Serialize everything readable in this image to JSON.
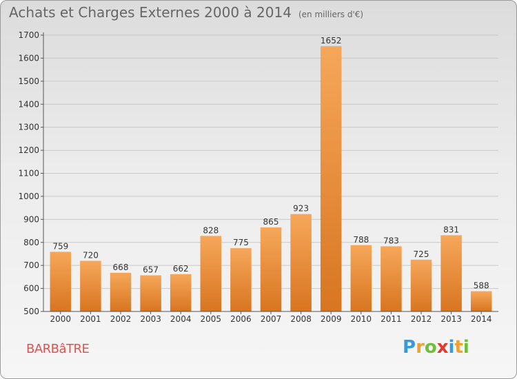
{
  "title": "Achats et Charges Externes 2000 à 2014",
  "subtitle": "(en milliers d'€)",
  "commune": "BARBâTRE",
  "logo": {
    "letters": [
      "P",
      "r",
      "o",
      "x",
      "i",
      "t",
      "i"
    ],
    "colors": [
      "#3a9ad9",
      "#f0a030",
      "#6fbf3a",
      "#e23a2a",
      "#3a9ad9",
      "#f0a030",
      "#6fbf3a"
    ]
  },
  "colors": {
    "bar_top": "#f6a75a",
    "bar_bottom": "#d87520",
    "grid": "#c8c8c8",
    "axis": "#555555",
    "label": "#333333",
    "commune": "#e0524e"
  },
  "chart_data": {
    "type": "bar",
    "categories": [
      "2000",
      "2001",
      "2002",
      "2003",
      "2004",
      "2005",
      "2006",
      "2007",
      "2008",
      "2009",
      "2010",
      "2011",
      "2012",
      "2013",
      "2014"
    ],
    "values": [
      759,
      720,
      668,
      657,
      662,
      828,
      775,
      865,
      923,
      1652,
      788,
      783,
      725,
      831,
      588
    ],
    "data_labels": [
      "759",
      "720",
      "668",
      "657",
      "662",
      "828",
      "775",
      "865",
      "923",
      "1652",
      "788",
      "783",
      "725",
      "831",
      "588"
    ],
    "y_ticks": [
      500,
      600,
      700,
      800,
      900,
      1000,
      1100,
      1200,
      1300,
      1400,
      1500,
      1600,
      1700
    ],
    "ylim": [
      500,
      1700
    ],
    "grid": true,
    "legend": "none"
  }
}
